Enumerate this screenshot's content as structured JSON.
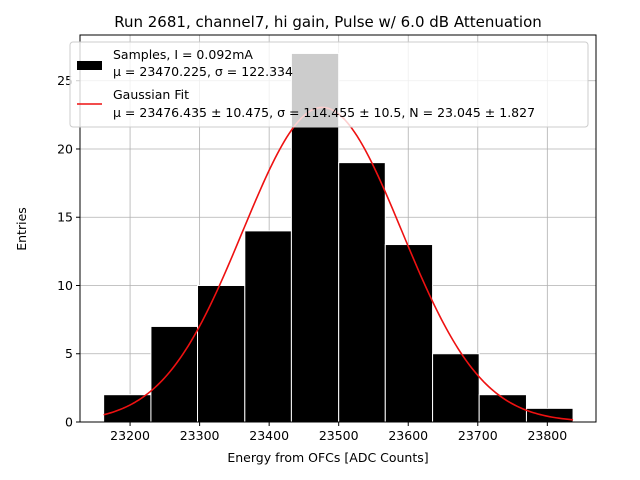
{
  "chart_data": {
    "type": "bar",
    "title": "Run 2681, channel7, hi gain, Pulse w/ 6.0 dB Attenuation",
    "xlabel": "Energy from OFCs [ADC Counts]",
    "ylabel": "Entries",
    "xlim": [
      23128,
      23870
    ],
    "ylim": [
      0,
      28.35
    ],
    "xticks": [
      23200,
      23300,
      23400,
      23500,
      23600,
      23700,
      23800
    ],
    "yticks": [
      0,
      5,
      10,
      15,
      20,
      25
    ],
    "grid": true,
    "legend_position": "top",
    "bins": [
      {
        "x0": 23162,
        "x1": 23230,
        "count": 2
      },
      {
        "x0": 23230,
        "x1": 23297,
        "count": 7
      },
      {
        "x0": 23297,
        "x1": 23365,
        "count": 10
      },
      {
        "x0": 23365,
        "x1": 23432,
        "count": 14
      },
      {
        "x0": 23432,
        "x1": 23500,
        "count": 27
      },
      {
        "x0": 23500,
        "x1": 23567,
        "count": 19
      },
      {
        "x0": 23567,
        "x1": 23635,
        "count": 13
      },
      {
        "x0": 23635,
        "x1": 23702,
        "count": 5
      },
      {
        "x0": 23702,
        "x1": 23770,
        "count": 2
      },
      {
        "x0": 23770,
        "x1": 23837,
        "count": 1
      }
    ],
    "fit": {
      "mu": 23476.435,
      "sigma": 114.455,
      "N": 23.045,
      "x_range": [
        23162,
        23837
      ]
    },
    "series": [
      {
        "name": "Samples, I = 0.092mA",
        "stats": "μ = 23470.225, σ = 122.334",
        "color": "#000000"
      },
      {
        "name": "Gaussian Fit",
        "stats": "μ = 23476.435 ± 10.475, σ = 114.455 ± 10.5, N = 23.045 ± 1.827",
        "color": "#ee1111"
      }
    ]
  }
}
